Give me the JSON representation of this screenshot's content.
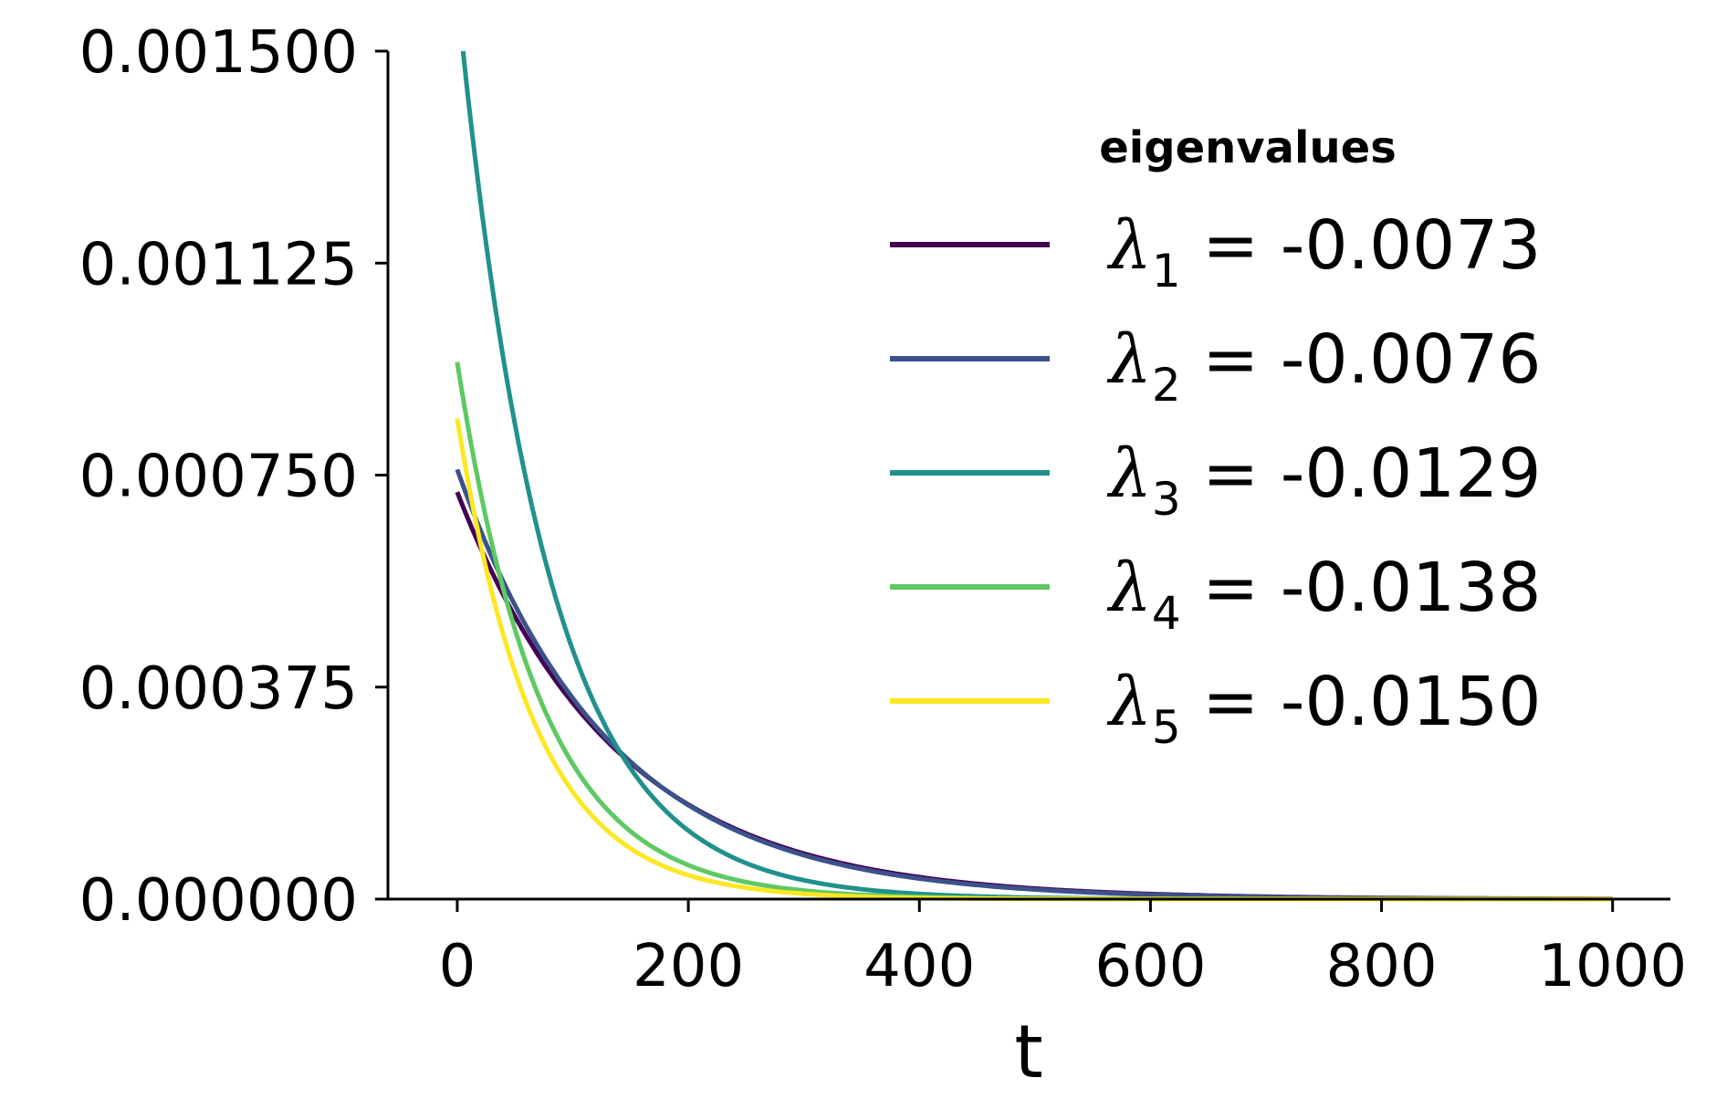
{
  "chart_data": {
    "type": "line",
    "xlabel": "t",
    "ylabel": "",
    "xlim": [
      -60,
      1050
    ],
    "ylim": [
      0,
      0.0015
    ],
    "x_ticks": [
      0,
      200,
      400,
      600,
      800,
      1000
    ],
    "x_tick_labels": [
      "0",
      "200",
      "400",
      "600",
      "800",
      "1000"
    ],
    "y_ticks": [
      0,
      0.000375,
      0.00075,
      0.001125,
      0.0015
    ],
    "y_tick_labels": [
      "0.000000",
      "0.000375",
      "0.000750",
      "0.001125",
      "0.001500"
    ],
    "grid": false,
    "legend": {
      "title": "eigenvalues",
      "placement": "top-right"
    },
    "series": [
      {
        "symbol": "λ",
        "subscript": "1",
        "value_text": " = -0.0073",
        "rate": -0.0073,
        "color": "#440154",
        "x": [
          0,
          50,
          100,
          150,
          200,
          300,
          400,
          500,
          600,
          800,
          1000
        ],
        "values": [
          0.00072,
          0.0005,
          0.00035,
          0.00024,
          0.000167,
          8.1e-05,
          3.9e-05,
          1.9e-05,
          9e-06,
          2.1e-06,
          5e-07
        ]
      },
      {
        "symbol": "λ",
        "subscript": "2",
        "value_text": " = -0.0076",
        "rate": -0.0076,
        "color": "#3b528b",
        "x": [
          0,
          50,
          100,
          150,
          200,
          300,
          400,
          500,
          600,
          800,
          1000
        ],
        "values": [
          0.00076,
          0.00052,
          0.00036,
          0.00024,
          0.000166,
          7.7e-05,
          3.6e-05,
          1.7e-05,
          7.9e-06,
          1.7e-06,
          4e-07
        ]
      },
      {
        "symbol": "λ",
        "subscript": "3",
        "value_text": " = -0.0129",
        "rate": -0.0129,
        "color": "#21918c",
        "x": [
          5,
          50,
          100,
          150,
          200,
          300,
          400,
          500,
          600,
          800,
          1000
        ],
        "values": [
          0.0015,
          0.00084,
          0.00044,
          0.00023,
          0.000121,
          3.3e-05,
          9.1e-06,
          2.5e-06,
          7e-07,
          1e-07,
          0.0
        ]
      },
      {
        "symbol": "λ",
        "subscript": "4",
        "value_text": " = -0.0138",
        "rate": -0.0138,
        "color": "#5ec962",
        "x": [
          0,
          50,
          100,
          150,
          200,
          300,
          400,
          500,
          600,
          800,
          1000
        ],
        "values": [
          0.00095,
          0.00048,
          0.00024,
          0.00012,
          6e-05,
          1.5e-05,
          3.8e-06,
          1e-06,
          2e-07,
          0.0,
          0.0
        ]
      },
      {
        "symbol": "λ",
        "subscript": "5",
        "value_text": " = -0.0150",
        "rate": -0.015,
        "color": "#fde725",
        "x": [
          0,
          50,
          100,
          150,
          200,
          300,
          400,
          500,
          600,
          800,
          1000
        ],
        "values": [
          0.00085,
          0.0004,
          0.00019,
          8.9e-05,
          4.2e-05,
          9.4e-06,
          2.1e-06,
          5e-07,
          1e-07,
          0.0,
          0.0
        ]
      }
    ]
  }
}
